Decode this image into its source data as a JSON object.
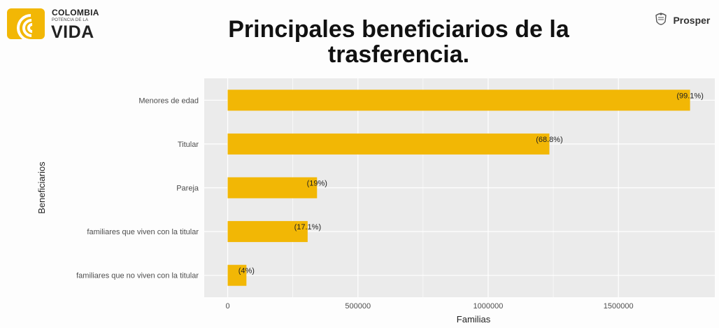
{
  "logo": {
    "line1": "COLOMBIA",
    "line2": "POTENCIA DE LA",
    "line3": "VIDA"
  },
  "title": "Principales beneficiarios de la trasferencia.",
  "prosper_label": "Prosper",
  "prosper_icon": "coat-of-arms-icon",
  "colors": {
    "bar": "#f2b705",
    "panel": "#ebebeb",
    "grid": "#ffffff"
  },
  "chart_data": {
    "type": "bar",
    "orientation": "horizontal",
    "categories": [
      "Menores de edad",
      "Titular",
      "Pareja",
      "familiares que viven con la titular",
      "familiares que no viven con la titular"
    ],
    "values": [
      1775000,
      1235000,
      343000,
      307000,
      72000
    ],
    "data_labels": [
      "(99.1%)",
      "(68.8%)",
      "(19%)",
      "(17.1%)",
      "(4%)"
    ],
    "xlabel": "Familias",
    "ylabel": "Beneficiarios",
    "xlim": [
      -90000,
      1870000
    ],
    "xticks": [
      0,
      500000,
      1000000,
      1500000
    ],
    "xtick_labels": [
      "0",
      "500000",
      "1000000",
      "1500000"
    ],
    "grid": true
  }
}
